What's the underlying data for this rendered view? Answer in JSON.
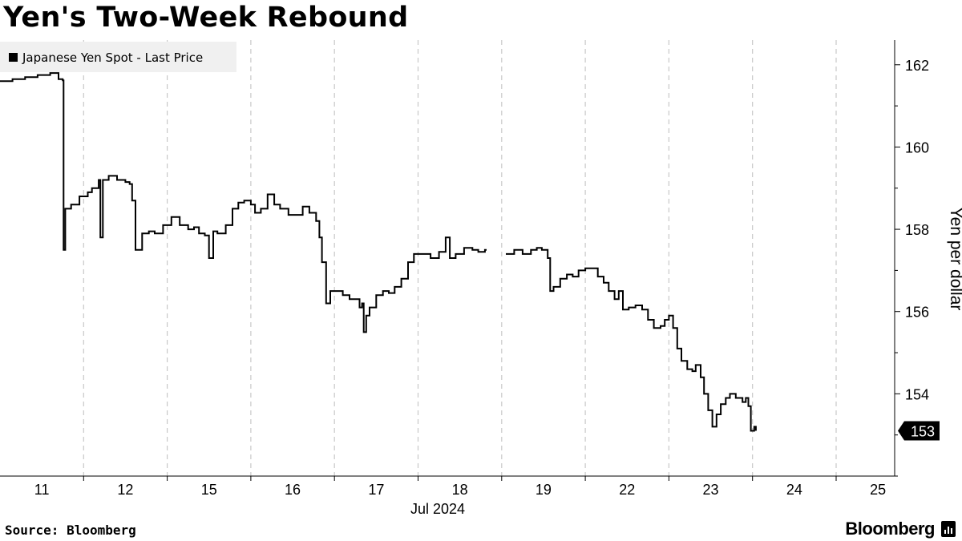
{
  "title": "Yen's Two-Week Rebound",
  "source": "Source: Bloomberg",
  "brand": "Bloomberg",
  "brand_icon": "terminal-bars-icon",
  "chart_data": {
    "type": "line",
    "series": [
      {
        "name": "Japanese Yen Spot - Last Price",
        "color": "#000000",
        "points": [
          [
            0,
            161.6
          ],
          [
            0.15,
            161.65
          ],
          [
            0.3,
            161.7
          ],
          [
            0.45,
            161.75
          ],
          [
            0.6,
            161.8
          ],
          [
            0.7,
            161.65
          ],
          [
            0.75,
            161.62
          ],
          [
            0.76,
            157.5
          ],
          [
            0.78,
            158.5
          ],
          [
            0.85,
            158.6
          ],
          [
            0.95,
            158.8
          ],
          [
            1.05,
            158.9
          ],
          [
            1.1,
            159.0
          ],
          [
            1.18,
            159.2
          ],
          [
            1.2,
            157.8
          ],
          [
            1.23,
            159.2
          ],
          [
            1.3,
            159.3
          ],
          [
            1.4,
            159.2
          ],
          [
            1.5,
            159.15
          ],
          [
            1.55,
            159.1
          ],
          [
            1.58,
            158.7
          ],
          [
            1.62,
            157.5
          ],
          [
            1.7,
            157.9
          ],
          [
            1.78,
            157.95
          ],
          [
            1.85,
            157.9
          ],
          [
            1.95,
            158.1
          ],
          [
            2.05,
            158.3
          ],
          [
            2.15,
            158.1
          ],
          [
            2.25,
            158.0
          ],
          [
            2.32,
            158.05
          ],
          [
            2.38,
            157.9
          ],
          [
            2.45,
            157.85
          ],
          [
            2.5,
            157.3
          ],
          [
            2.55,
            157.95
          ],
          [
            2.6,
            157.9
          ],
          [
            2.7,
            158.1
          ],
          [
            2.78,
            158.5
          ],
          [
            2.85,
            158.65
          ],
          [
            2.92,
            158.7
          ],
          [
            3.0,
            158.6
          ],
          [
            3.05,
            158.4
          ],
          [
            3.12,
            158.5
          ],
          [
            3.2,
            158.85
          ],
          [
            3.28,
            158.6
          ],
          [
            3.35,
            158.5
          ],
          [
            3.45,
            158.35
          ],
          [
            3.55,
            158.35
          ],
          [
            3.62,
            158.55
          ],
          [
            3.7,
            158.4
          ],
          [
            3.78,
            158.2
          ],
          [
            3.82,
            157.8
          ],
          [
            3.85,
            157.2
          ],
          [
            3.9,
            156.2
          ],
          [
            3.95,
            156.5
          ],
          [
            4.02,
            156.5
          ],
          [
            4.1,
            156.4
          ],
          [
            4.18,
            156.3
          ],
          [
            4.25,
            156.3
          ],
          [
            4.3,
            156.1
          ],
          [
            4.33,
            156.2
          ],
          [
            4.35,
            155.5
          ],
          [
            4.38,
            155.9
          ],
          [
            4.42,
            156.1
          ],
          [
            4.5,
            156.4
          ],
          [
            4.58,
            156.5
          ],
          [
            4.65,
            156.45
          ],
          [
            4.72,
            156.6
          ],
          [
            4.8,
            156.8
          ],
          [
            4.88,
            157.2
          ],
          [
            4.95,
            157.4
          ],
          [
            5.05,
            157.4
          ],
          [
            5.15,
            157.3
          ],
          [
            5.25,
            157.45
          ],
          [
            5.33,
            157.8
          ],
          [
            5.38,
            157.3
          ],
          [
            5.45,
            157.4
          ],
          [
            5.55,
            157.55
          ],
          [
            5.65,
            157.5
          ],
          [
            5.72,
            157.45
          ],
          [
            5.8,
            157.5
          ],
          [
            5.82,
            157.5
          ],
          [
            6.05,
            157.4
          ],
          [
            6.15,
            157.5
          ],
          [
            6.25,
            157.4
          ],
          [
            6.35,
            157.5
          ],
          [
            6.42,
            157.55
          ],
          [
            6.48,
            157.5
          ],
          [
            6.55,
            157.3
          ],
          [
            6.58,
            156.5
          ],
          [
            6.62,
            156.6
          ],
          [
            6.7,
            156.8
          ],
          [
            6.78,
            156.9
          ],
          [
            6.85,
            156.85
          ],
          [
            6.92,
            157.0
          ],
          [
            7.0,
            157.05
          ],
          [
            7.08,
            157.05
          ],
          [
            7.15,
            156.85
          ],
          [
            7.22,
            156.7
          ],
          [
            7.28,
            156.5
          ],
          [
            7.35,
            156.3
          ],
          [
            7.4,
            156.5
          ],
          [
            7.45,
            156.05
          ],
          [
            7.52,
            156.1
          ],
          [
            7.6,
            156.15
          ],
          [
            7.68,
            156.05
          ],
          [
            7.75,
            155.8
          ],
          [
            7.82,
            155.6
          ],
          [
            7.9,
            155.65
          ],
          [
            7.95,
            155.8
          ],
          [
            8.0,
            155.9
          ],
          [
            8.05,
            155.6
          ],
          [
            8.1,
            155.1
          ],
          [
            8.15,
            154.8
          ],
          [
            8.22,
            154.6
          ],
          [
            8.28,
            154.55
          ],
          [
            8.32,
            154.7
          ],
          [
            8.38,
            154.4
          ],
          [
            8.42,
            154.0
          ],
          [
            8.47,
            153.6
          ],
          [
            8.52,
            153.2
          ],
          [
            8.57,
            153.5
          ],
          [
            8.62,
            153.75
          ],
          [
            8.68,
            153.9
          ],
          [
            8.73,
            154.0
          ],
          [
            8.8,
            153.9
          ],
          [
            8.88,
            153.8
          ],
          [
            8.92,
            153.9
          ],
          [
            8.95,
            153.7
          ],
          [
            8.98,
            153.1
          ],
          [
            9.02,
            153.2
          ],
          [
            9.04,
            153.1
          ]
        ]
      }
    ],
    "x_tick_labels": [
      "11",
      "12",
      "15",
      "16",
      "17",
      "18",
      "19",
      "22",
      "23",
      "24",
      "25"
    ],
    "x_sublabel": "Jul 2024",
    "xlim": [
      0,
      10.7
    ],
    "y_ticks": [
      154,
      156,
      158,
      160,
      162
    ],
    "ylim": [
      152.0,
      162.6
    ],
    "ylabel": "Yen per dollar",
    "last_value_label": "153",
    "last_value": 153.1,
    "grid": "vertical-dashed",
    "legend_position": "top-left",
    "legend_bg": "#f0f0f0"
  }
}
